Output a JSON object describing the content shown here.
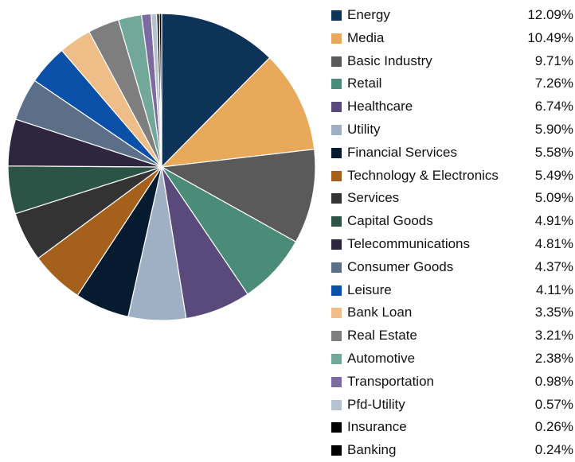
{
  "chart_data": {
    "type": "pie",
    "title": "",
    "slices": [
      {
        "label": "Energy",
        "value": 12.09,
        "value_label": "12.09%",
        "color": "#0d3358"
      },
      {
        "label": "Media",
        "value": 10.49,
        "value_label": "10.49%",
        "color": "#e8a95b"
      },
      {
        "label": "Basic Industry",
        "value": 9.71,
        "value_label": "9.71%",
        "color": "#5a5a5a"
      },
      {
        "label": "Retail",
        "value": 7.26,
        "value_label": "7.26%",
        "color": "#4a8c78"
      },
      {
        "label": "Healthcare",
        "value": 6.74,
        "value_label": "6.74%",
        "color": "#5a4a7c"
      },
      {
        "label": "Utility",
        "value": 5.9,
        "value_label": "5.90%",
        "color": "#a0b0c4"
      },
      {
        "label": "Financial Services",
        "value": 5.58,
        "value_label": "5.58%",
        "color": "#061a30"
      },
      {
        "label": "Technology & Electronics",
        "value": 5.49,
        "value_label": "5.49%",
        "color": "#a5601c"
      },
      {
        "label": "Services",
        "value": 5.09,
        "value_label": "5.09%",
        "color": "#333333"
      },
      {
        "label": "Capital Goods",
        "value": 4.91,
        "value_label": "4.91%",
        "color": "#2c5446"
      },
      {
        "label": "Telecommunications",
        "value": 4.81,
        "value_label": "4.81%",
        "color": "#2e2540"
      },
      {
        "label": "Consumer Goods",
        "value": 4.37,
        "value_label": "4.37%",
        "color": "#5c6f88"
      },
      {
        "label": "Leisure",
        "value": 4.11,
        "value_label": "4.11%",
        "color": "#0a4fa8"
      },
      {
        "label": "Bank Loan",
        "value": 3.35,
        "value_label": "3.35%",
        "color": "#eebd88"
      },
      {
        "label": "Real Estate",
        "value": 3.21,
        "value_label": "3.21%",
        "color": "#7e7e7e"
      },
      {
        "label": "Automotive",
        "value": 2.38,
        "value_label": "2.38%",
        "color": "#72a89a"
      },
      {
        "label": "Transportation",
        "value": 0.98,
        "value_label": "0.98%",
        "color": "#7d6aa0"
      },
      {
        "label": "Pfd-Utility",
        "value": 0.57,
        "value_label": "0.57%",
        "color": "#b6c2d0"
      },
      {
        "label": "Insurance",
        "value": 0.26,
        "value_label": "0.26%",
        "color": "#000000"
      },
      {
        "label": "Banking",
        "value": 0.24,
        "value_label": "0.24%",
        "color": "#000000"
      }
    ],
    "start_angle": "12 o'clock",
    "direction": "clockwise",
    "legend_position": "right"
  }
}
